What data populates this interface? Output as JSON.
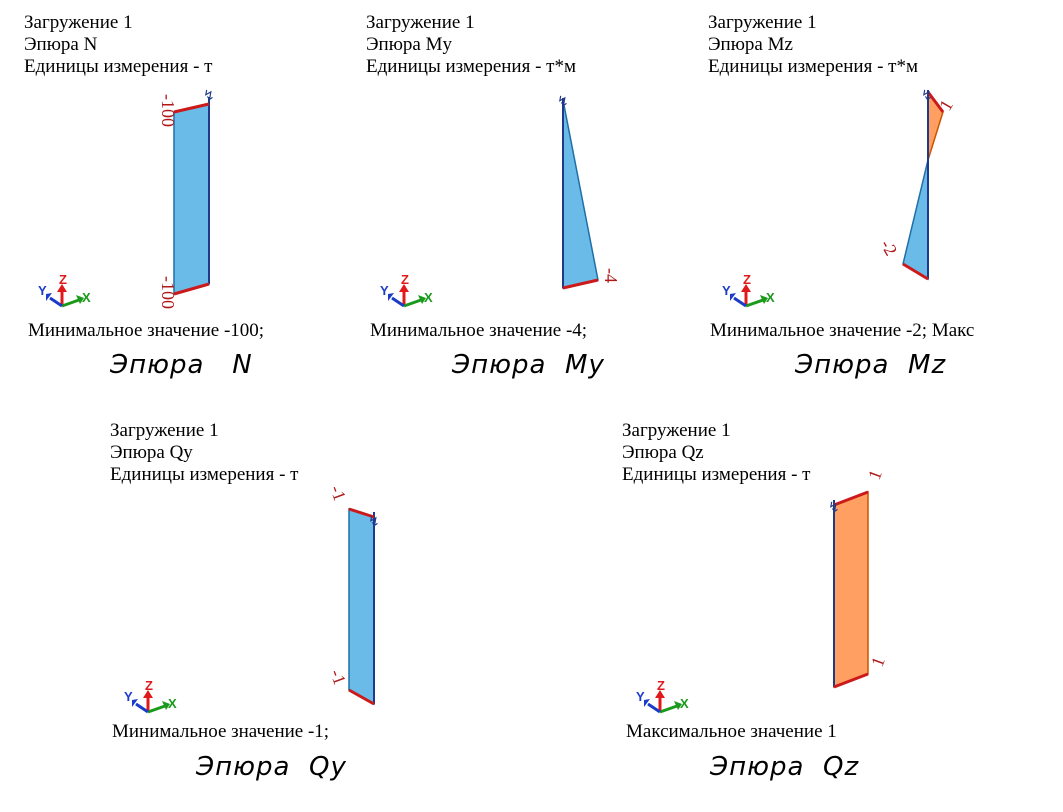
{
  "colors": {
    "negative_fill": "#5ab4e6",
    "negative_edge": "#1f6fa8",
    "positive_fill": "#ff9a5a",
    "positive_edge": "#cc5500",
    "extreme_edge": "#cc1a1a",
    "value_text": "#b01818",
    "axis_x": "#1a9a1a",
    "axis_y": "#1a3cc8",
    "axis_z": "#e01a1a"
  },
  "panels": [
    {
      "id": "n",
      "header": [
        "Загружение 1",
        "Эпюра  N",
        "Единицы измерения - т"
      ],
      "footer": "Минимальное значение  -100;",
      "caption": "Эпюра   N",
      "values": {
        "top": -100,
        "bottom": -100
      },
      "labels": {
        "top": "-100",
        "bottom": "-100"
      },
      "axes": {
        "x": "X",
        "y": "Y",
        "z": "Z"
      }
    },
    {
      "id": "my",
      "header": [
        "Загружение 1",
        "Эпюра My",
        "Единицы измерения - т*м"
      ],
      "footer": "Минимальное значение  -4;",
      "caption": "Эпюра  My",
      "values": {
        "top": 0,
        "bottom": -4
      },
      "labels": {
        "bottom": "-4"
      },
      "axes": {
        "x": "X",
        "y": "Y",
        "z": "Z"
      }
    },
    {
      "id": "mz",
      "header": [
        "Загружение 1",
        "Эпюра Mz",
        "Единицы измерения - т*м"
      ],
      "footer": "Минимальное значение  -2; Макс",
      "caption": "Эпюра  Mz",
      "values": {
        "top": 1,
        "bottom": -2
      },
      "labels": {
        "top": "1",
        "bottom": "-2"
      },
      "axes": {
        "x": "X",
        "y": "Y",
        "z": "Z"
      }
    },
    {
      "id": "qy",
      "header": [
        "Загружение 1",
        "Эпюра Qy",
        "Единицы измерения - т"
      ],
      "footer": "Минимальное значение  -1;",
      "caption": "Эпюра  Qy",
      "values": {
        "top": -1,
        "bottom": -1
      },
      "labels": {
        "top": "-1",
        "bottom": "-1"
      },
      "axes": {
        "x": "X",
        "y": "Y",
        "z": "Z"
      }
    },
    {
      "id": "qz",
      "header": [
        "Загружение 1",
        "Эпюра Qz",
        "Единицы измерения - т"
      ],
      "footer": "Максимальное значение  1",
      "caption": "Эпюра  Qz",
      "values": {
        "top": 1,
        "bottom": 1
      },
      "labels": {
        "top": "1",
        "bottom": "1"
      },
      "axes": {
        "x": "X",
        "y": "Y",
        "z": "Z"
      }
    }
  ]
}
